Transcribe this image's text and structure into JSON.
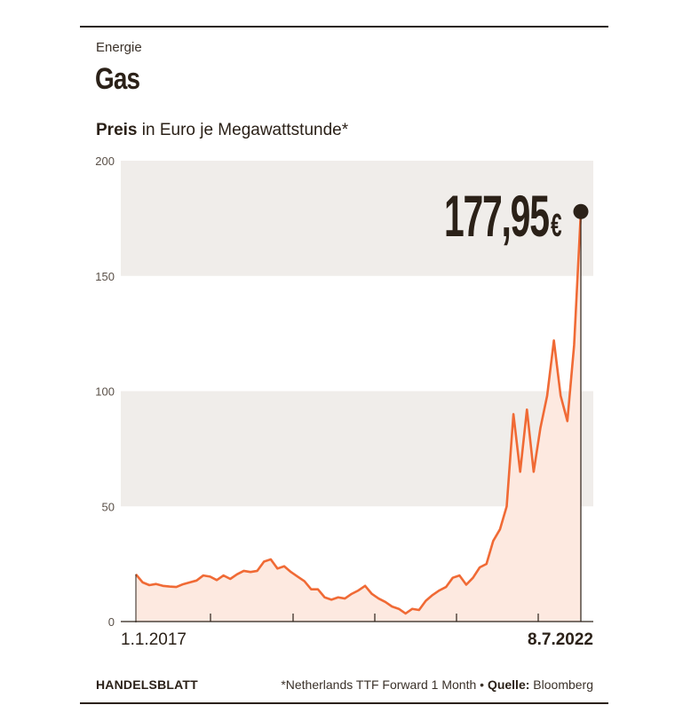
{
  "header": {
    "kicker": "Energie",
    "title": "Gas",
    "subtitle_bold": "Preis",
    "subtitle_rest": " in Euro je Megawattstunde*"
  },
  "footer": {
    "brand": "HANDELSBLATT",
    "note": "*Netherlands TTF Forward 1 Month • ",
    "source_label": "Quelle:",
    "source_value": " Bloomberg"
  },
  "colors": {
    "line": "#f06a35",
    "area": "#fde9e0",
    "band": "#f0edea",
    "text": "#2b2118"
  },
  "chart_data": {
    "type": "area",
    "title": "Gas",
    "ylabel": "Preis in Euro je Megawattstunde*",
    "ylim": [
      0,
      200
    ],
    "yticks": [
      0,
      50,
      100,
      150,
      200
    ],
    "x_start_label": "1.1.2017",
    "x_end_label": "8.7.2022",
    "last_value_label": "177,95",
    "last_value_unit": "€",
    "last_value": 177.95,
    "series": [
      {
        "values": [
          20.5,
          17,
          15.8,
          16.3,
          15.5,
          15.2,
          15,
          16.2,
          17,
          17.8,
          20,
          19.5,
          18,
          20,
          18.5,
          20.5,
          22,
          21.5,
          22,
          26,
          27,
          23,
          24,
          21.5,
          19.5,
          17.5,
          14,
          14,
          10.5,
          9.5,
          10.5,
          10,
          12,
          13.5,
          15.5,
          12,
          10,
          8.5,
          6.5,
          5.5,
          3.5,
          5.5,
          5,
          9,
          11.5,
          13.5,
          15,
          19,
          20,
          16,
          19,
          23.5,
          25,
          35,
          40,
          50,
          90,
          65,
          92,
          65,
          84,
          98,
          122,
          98,
          87,
          120,
          177.95
        ]
      }
    ]
  }
}
